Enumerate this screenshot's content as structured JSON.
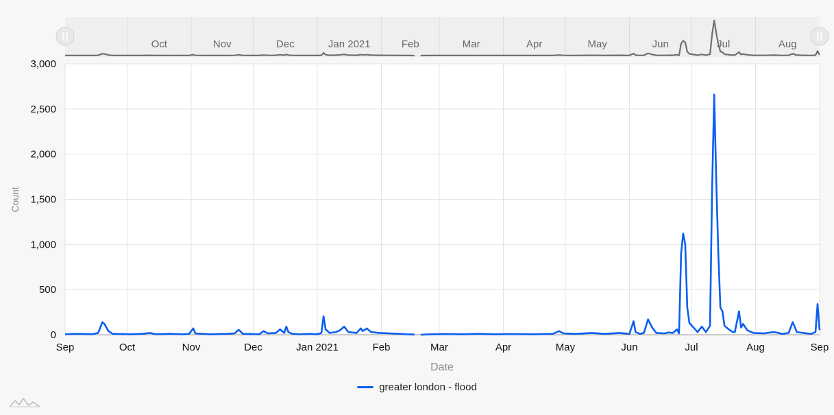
{
  "colors": {
    "series": "#0a5ff0",
    "navigator_line": "#6f6f6f"
  },
  "chart_data": {
    "type": "line",
    "xlabel": "Date",
    "ylabel": "Count",
    "x_range": [
      "2020-09-01",
      "2021-09-01"
    ],
    "ylim": [
      0,
      3000
    ],
    "grid": true,
    "legend_position": "bottom-center",
    "y_ticks": [
      "0",
      "500",
      "1,000",
      "1,500",
      "2,000",
      "2,500",
      "3,000"
    ],
    "x_ticks": [
      "Sep",
      "Oct",
      "Nov",
      "Dec",
      "Jan 2021",
      "Feb",
      "Mar",
      "Apr",
      "May",
      "Jun",
      "Jul",
      "Aug",
      "Sep"
    ],
    "navigator_ticks": [
      "Oct",
      "Nov",
      "Dec",
      "Jan 2021",
      "Feb",
      "Mar",
      "Apr",
      "May",
      "Jun",
      "Jul",
      "Aug"
    ],
    "series": [
      {
        "name": "greater london - flood",
        "points": [
          [
            "2020-09-01",
            5
          ],
          [
            "2020-09-06",
            10
          ],
          [
            "2020-09-10",
            8
          ],
          [
            "2020-09-14",
            5
          ],
          [
            "2020-09-17",
            20
          ],
          [
            "2020-09-19",
            140
          ],
          [
            "2020-09-20",
            120
          ],
          [
            "2020-09-22",
            40
          ],
          [
            "2020-09-24",
            10
          ],
          [
            "2020-10-03",
            5
          ],
          [
            "2020-10-08",
            10
          ],
          [
            "2020-10-12",
            20
          ],
          [
            "2020-10-15",
            5
          ],
          [
            "2020-10-22",
            10
          ],
          [
            "2020-10-28",
            5
          ],
          [
            "2020-10-31",
            10
          ],
          [
            "2020-11-02",
            70
          ],
          [
            "2020-11-03",
            15
          ],
          [
            "2020-11-10",
            5
          ],
          [
            "2020-11-18",
            10
          ],
          [
            "2020-11-22",
            15
          ],
          [
            "2020-11-24",
            55
          ],
          [
            "2020-11-26",
            10
          ],
          [
            "2020-12-04",
            5
          ],
          [
            "2020-12-06",
            40
          ],
          [
            "2020-12-08",
            15
          ],
          [
            "2020-12-12",
            20
          ],
          [
            "2020-12-14",
            60
          ],
          [
            "2020-12-16",
            20
          ],
          [
            "2020-12-17",
            90
          ],
          [
            "2020-12-18",
            30
          ],
          [
            "2020-12-20",
            10
          ],
          [
            "2020-12-24",
            5
          ],
          [
            "2020-12-28",
            10
          ],
          [
            "2021-01-01",
            5
          ],
          [
            "2021-01-03",
            20
          ],
          [
            "2021-01-04",
            205
          ],
          [
            "2021-01-05",
            60
          ],
          [
            "2021-01-07",
            20
          ],
          [
            "2021-01-10",
            30
          ],
          [
            "2021-01-12",
            50
          ],
          [
            "2021-01-14",
            90
          ],
          [
            "2021-01-16",
            30
          ],
          [
            "2021-01-20",
            20
          ],
          [
            "2021-01-22",
            70
          ],
          [
            "2021-01-23",
            40
          ],
          [
            "2021-01-25",
            70
          ],
          [
            "2021-01-27",
            30
          ],
          [
            "2021-01-31",
            20
          ],
          [
            "2021-02-05",
            15
          ],
          [
            "2021-02-10",
            10
          ],
          [
            "2021-02-13",
            5
          ],
          [
            "2021-02-17",
            2
          ],
          [
            "2021-02-20",
            0
          ],
          [
            "2021-02-25",
            5
          ],
          [
            "2021-03-05",
            8
          ],
          [
            "2021-03-12",
            5
          ],
          [
            "2021-03-20",
            10
          ],
          [
            "2021-03-28",
            5
          ],
          [
            "2021-04-05",
            8
          ],
          [
            "2021-04-15",
            5
          ],
          [
            "2021-04-25",
            10
          ],
          [
            "2021-04-28",
            40
          ],
          [
            "2021-04-30",
            15
          ],
          [
            "2021-05-06",
            10
          ],
          [
            "2021-05-14",
            20
          ],
          [
            "2021-05-20",
            10
          ],
          [
            "2021-05-27",
            20
          ],
          [
            "2021-06-01",
            10
          ],
          [
            "2021-06-03",
            150
          ],
          [
            "2021-06-04",
            30
          ],
          [
            "2021-06-06",
            10
          ],
          [
            "2021-06-08",
            20
          ],
          [
            "2021-06-10",
            170
          ],
          [
            "2021-06-12",
            80
          ],
          [
            "2021-06-14",
            20
          ],
          [
            "2021-06-18",
            15
          ],
          [
            "2021-06-20",
            25
          ],
          [
            "2021-06-22",
            20
          ],
          [
            "2021-06-24",
            60
          ],
          [
            "2021-06-25",
            15
          ],
          [
            "2021-06-26",
            900
          ],
          [
            "2021-06-27",
            1120
          ],
          [
            "2021-06-28",
            1000
          ],
          [
            "2021-06-29",
            300
          ],
          [
            "2021-06-30",
            130
          ],
          [
            "2021-07-02",
            80
          ],
          [
            "2021-07-04",
            30
          ],
          [
            "2021-07-06",
            90
          ],
          [
            "2021-07-08",
            30
          ],
          [
            "2021-07-10",
            100
          ],
          [
            "2021-07-11",
            1600
          ],
          [
            "2021-07-12",
            2660
          ],
          [
            "2021-07-13",
            1700
          ],
          [
            "2021-07-14",
            900
          ],
          [
            "2021-07-15",
            300
          ],
          [
            "2021-07-16",
            260
          ],
          [
            "2021-07-17",
            100
          ],
          [
            "2021-07-19",
            60
          ],
          [
            "2021-07-21",
            30
          ],
          [
            "2021-07-22",
            30
          ],
          [
            "2021-07-24",
            260
          ],
          [
            "2021-07-25",
            80
          ],
          [
            "2021-07-26",
            120
          ],
          [
            "2021-07-28",
            50
          ],
          [
            "2021-07-31",
            20
          ],
          [
            "2021-08-05",
            15
          ],
          [
            "2021-08-10",
            30
          ],
          [
            "2021-08-14",
            10
          ],
          [
            "2021-08-17",
            20
          ],
          [
            "2021-08-19",
            140
          ],
          [
            "2021-08-21",
            30
          ],
          [
            "2021-08-24",
            20
          ],
          [
            "2021-08-28",
            10
          ],
          [
            "2021-08-30",
            30
          ],
          [
            "2021-08-31",
            340
          ],
          [
            "2021-09-01",
            50
          ]
        ]
      }
    ]
  }
}
